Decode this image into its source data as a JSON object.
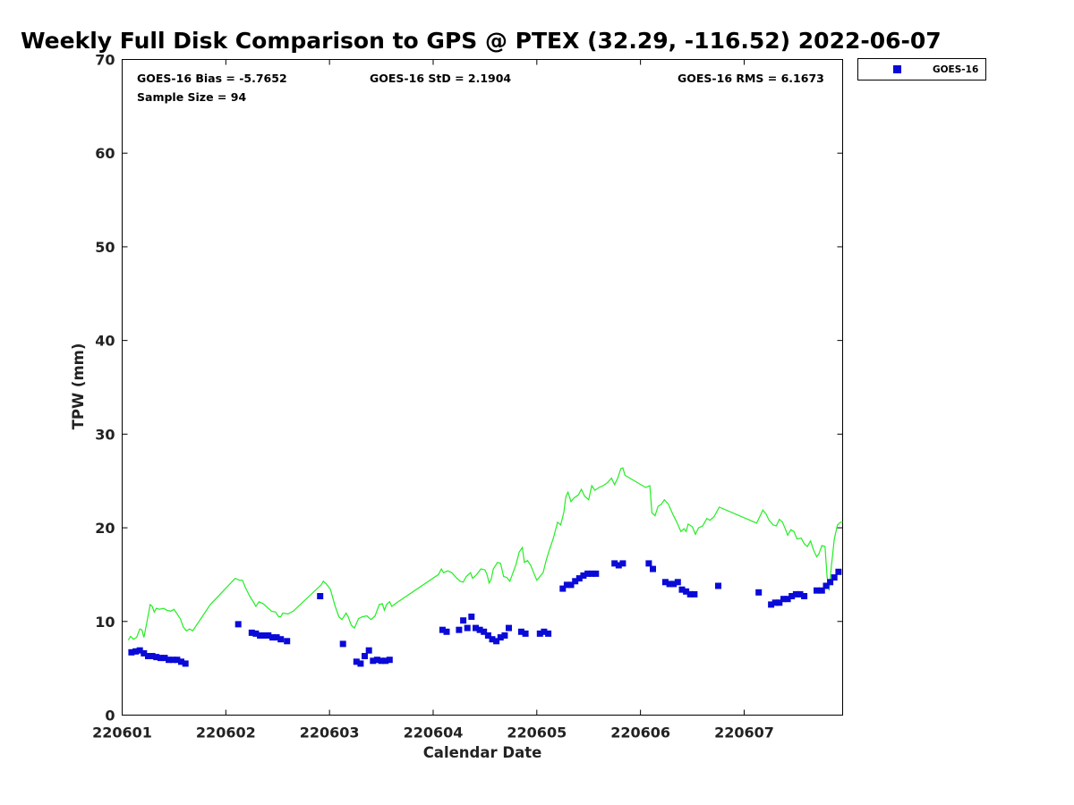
{
  "chart_data": {
    "type": "scatter",
    "title": "Weekly Full Disk Comparison to GPS @ PTEX (32.29, -116.52) 2022-06-07",
    "xlabel": "Calendar Date",
    "ylabel": "TPW (mm)",
    "ylim": [
      0,
      70
    ],
    "yticks": [
      0,
      10,
      20,
      30,
      40,
      50,
      60,
      70
    ],
    "xlim": [
      0,
      6.95
    ],
    "xticks": [
      {
        "pos": 0,
        "label": "220601"
      },
      {
        "pos": 1,
        "label": "220602"
      },
      {
        "pos": 2,
        "label": "220603"
      },
      {
        "pos": 3,
        "label": "220604"
      },
      {
        "pos": 4,
        "label": "220605"
      },
      {
        "pos": 5,
        "label": "220606"
      },
      {
        "pos": 6,
        "label": "220607"
      }
    ],
    "stats": {
      "bias": "GOES-16 Bias = -5.7652",
      "std": "GOES-16 StD = 2.1904",
      "rms": "GOES-16 RMS = 6.1673",
      "sample": "Sample Size = 94"
    },
    "legend": {
      "placement": "top-right (outside plot)",
      "label": "GOES-16"
    },
    "colors": {
      "goes": "#0a0ad8",
      "gps": "#22ee22"
    },
    "series": [
      {
        "name": "GOES-16",
        "marker": "square",
        "points": [
          [
            0.09,
            6.7
          ],
          [
            0.13,
            6.8
          ],
          [
            0.17,
            6.9
          ],
          [
            0.21,
            6.6
          ],
          [
            0.25,
            6.3
          ],
          [
            0.29,
            6.3
          ],
          [
            0.33,
            6.2
          ],
          [
            0.37,
            6.1
          ],
          [
            0.41,
            6.1
          ],
          [
            0.45,
            5.9
          ],
          [
            0.49,
            5.9
          ],
          [
            0.53,
            5.9
          ],
          [
            0.57,
            5.7
          ],
          [
            0.61,
            5.5
          ],
          [
            1.12,
            9.7
          ],
          [
            1.25,
            8.8
          ],
          [
            1.29,
            8.7
          ],
          [
            1.33,
            8.5
          ],
          [
            1.37,
            8.5
          ],
          [
            1.41,
            8.5
          ],
          [
            1.45,
            8.3
          ],
          [
            1.49,
            8.3
          ],
          [
            1.53,
            8.1
          ],
          [
            1.59,
            7.9
          ],
          [
            1.91,
            12.7
          ],
          [
            2.13,
            7.6
          ],
          [
            2.26,
            5.7
          ],
          [
            2.3,
            5.5
          ],
          [
            2.34,
            6.3
          ],
          [
            2.38,
            6.9
          ],
          [
            2.42,
            5.8
          ],
          [
            2.46,
            5.9
          ],
          [
            2.5,
            5.8
          ],
          [
            2.54,
            5.8
          ],
          [
            2.58,
            5.9
          ],
          [
            3.09,
            9.1
          ],
          [
            3.13,
            8.9
          ],
          [
            3.25,
            9.1
          ],
          [
            3.29,
            10.1
          ],
          [
            3.33,
            9.3
          ],
          [
            3.37,
            10.5
          ],
          [
            3.41,
            9.3
          ],
          [
            3.45,
            9.1
          ],
          [
            3.49,
            8.9
          ],
          [
            3.53,
            8.5
          ],
          [
            3.57,
            8.1
          ],
          [
            3.61,
            7.9
          ],
          [
            3.65,
            8.3
          ],
          [
            3.69,
            8.5
          ],
          [
            3.73,
            9.3
          ],
          [
            3.85,
            8.9
          ],
          [
            3.89,
            8.7
          ],
          [
            4.03,
            8.7
          ],
          [
            4.07,
            8.9
          ],
          [
            4.11,
            8.7
          ],
          [
            4.25,
            13.5
          ],
          [
            4.29,
            13.9
          ],
          [
            4.33,
            13.9
          ],
          [
            4.37,
            14.3
          ],
          [
            4.41,
            14.6
          ],
          [
            4.45,
            14.9
          ],
          [
            4.49,
            15.1
          ],
          [
            4.53,
            15.1
          ],
          [
            4.57,
            15.1
          ],
          [
            4.75,
            16.2
          ],
          [
            4.79,
            16.0
          ],
          [
            4.83,
            16.2
          ],
          [
            5.08,
            16.2
          ],
          [
            5.12,
            15.6
          ],
          [
            5.24,
            14.2
          ],
          [
            5.28,
            14.0
          ],
          [
            5.32,
            14.0
          ],
          [
            5.36,
            14.2
          ],
          [
            5.4,
            13.4
          ],
          [
            5.44,
            13.2
          ],
          [
            5.48,
            12.9
          ],
          [
            5.52,
            12.9
          ],
          [
            5.75,
            13.8
          ],
          [
            6.14,
            13.1
          ],
          [
            6.26,
            11.8
          ],
          [
            6.3,
            12.0
          ],
          [
            6.34,
            12.0
          ],
          [
            6.38,
            12.4
          ],
          [
            6.42,
            12.4
          ],
          [
            6.46,
            12.7
          ],
          [
            6.5,
            12.9
          ],
          [
            6.54,
            12.9
          ],
          [
            6.58,
            12.7
          ],
          [
            6.7,
            13.3
          ],
          [
            6.75,
            13.3
          ],
          [
            6.79,
            13.8
          ],
          [
            6.83,
            14.2
          ],
          [
            6.87,
            14.7
          ],
          [
            6.91,
            15.3
          ]
        ]
      },
      {
        "name": "",
        "marker": "line",
        "points": [
          [
            0.06,
            8.0
          ],
          [
            0.08,
            8.4
          ],
          [
            0.11,
            8.1
          ],
          [
            0.14,
            8.3
          ],
          [
            0.17,
            9.2
          ],
          [
            0.19,
            9.1
          ],
          [
            0.21,
            8.3
          ],
          [
            0.24,
            10.0
          ],
          [
            0.27,
            11.8
          ],
          [
            0.29,
            11.6
          ],
          [
            0.31,
            11.0
          ],
          [
            0.33,
            11.4
          ],
          [
            0.36,
            11.3
          ],
          [
            0.4,
            11.4
          ],
          [
            0.43,
            11.2
          ],
          [
            0.47,
            11.1
          ],
          [
            0.5,
            11.3
          ],
          [
            0.53,
            10.8
          ],
          [
            0.56,
            10.3
          ],
          [
            0.59,
            9.4
          ],
          [
            0.62,
            9.0
          ],
          [
            0.65,
            9.2
          ],
          [
            0.68,
            9.0
          ],
          [
            0.85,
            11.8
          ],
          [
            1.09,
            14.6
          ],
          [
            1.13,
            14.4
          ],
          [
            1.16,
            14.4
          ],
          [
            1.19,
            13.6
          ],
          [
            1.23,
            12.7
          ],
          [
            1.27,
            12.0
          ],
          [
            1.29,
            11.6
          ],
          [
            1.32,
            12.1
          ],
          [
            1.36,
            11.9
          ],
          [
            1.4,
            11.5
          ],
          [
            1.44,
            11.1
          ],
          [
            1.48,
            11.0
          ],
          [
            1.51,
            10.5
          ],
          [
            1.53,
            10.5
          ],
          [
            1.55,
            10.9
          ],
          [
            1.6,
            10.8
          ],
          [
            1.65,
            11.1
          ],
          [
            1.92,
            13.9
          ],
          [
            1.94,
            14.3
          ],
          [
            1.97,
            14.0
          ],
          [
            2.01,
            13.4
          ],
          [
            2.05,
            11.8
          ],
          [
            2.09,
            10.5
          ],
          [
            2.12,
            10.2
          ],
          [
            2.16,
            10.9
          ],
          [
            2.18,
            10.5
          ],
          [
            2.21,
            9.6
          ],
          [
            2.24,
            9.3
          ],
          [
            2.28,
            10.3
          ],
          [
            2.32,
            10.5
          ],
          [
            2.36,
            10.6
          ],
          [
            2.4,
            10.2
          ],
          [
            2.44,
            10.6
          ],
          [
            2.48,
            11.8
          ],
          [
            2.51,
            11.9
          ],
          [
            2.53,
            11.2
          ],
          [
            2.55,
            11.8
          ],
          [
            2.58,
            12.1
          ],
          [
            2.6,
            11.6
          ],
          [
            2.65,
            12.0
          ],
          [
            3.05,
            15.0
          ],
          [
            3.08,
            15.6
          ],
          [
            3.1,
            15.2
          ],
          [
            3.14,
            15.4
          ],
          [
            3.18,
            15.2
          ],
          [
            3.22,
            14.7
          ],
          [
            3.26,
            14.3
          ],
          [
            3.29,
            14.2
          ],
          [
            3.32,
            14.8
          ],
          [
            3.36,
            15.2
          ],
          [
            3.38,
            14.6
          ],
          [
            3.42,
            15.0
          ],
          [
            3.46,
            15.6
          ],
          [
            3.5,
            15.5
          ],
          [
            3.52,
            15.0
          ],
          [
            3.54,
            14.1
          ],
          [
            3.56,
            14.5
          ],
          [
            3.58,
            15.6
          ],
          [
            3.62,
            16.3
          ],
          [
            3.65,
            16.2
          ],
          [
            3.68,
            14.8
          ],
          [
            3.71,
            14.7
          ],
          [
            3.74,
            14.3
          ],
          [
            3.77,
            15.2
          ],
          [
            3.8,
            16.1
          ],
          [
            3.83,
            17.4
          ],
          [
            3.86,
            17.9
          ],
          [
            3.88,
            16.3
          ],
          [
            3.91,
            16.5
          ],
          [
            3.94,
            16.0
          ],
          [
            3.97,
            15.2
          ],
          [
            4.0,
            14.4
          ],
          [
            4.03,
            14.8
          ],
          [
            4.06,
            15.2
          ],
          [
            4.09,
            16.5
          ],
          [
            4.12,
            17.6
          ],
          [
            4.16,
            18.9
          ],
          [
            4.2,
            20.6
          ],
          [
            4.23,
            20.3
          ],
          [
            4.26,
            21.6
          ],
          [
            4.28,
            23.3
          ],
          [
            4.3,
            23.8
          ],
          [
            4.33,
            22.8
          ],
          [
            4.36,
            23.2
          ],
          [
            4.4,
            23.5
          ],
          [
            4.43,
            24.1
          ],
          [
            4.46,
            23.4
          ],
          [
            4.5,
            23.0
          ],
          [
            4.53,
            24.5
          ],
          [
            4.56,
            24.0
          ],
          [
            4.6,
            24.3
          ],
          [
            4.64,
            24.5
          ],
          [
            4.68,
            24.8
          ],
          [
            4.72,
            25.3
          ],
          [
            4.75,
            24.6
          ],
          [
            4.78,
            25.3
          ],
          [
            4.81,
            26.3
          ],
          [
            4.83,
            26.4
          ],
          [
            4.85,
            25.6
          ],
          [
            5.05,
            24.3
          ],
          [
            5.09,
            24.5
          ],
          [
            5.11,
            21.6
          ],
          [
            5.14,
            21.3
          ],
          [
            5.17,
            22.3
          ],
          [
            5.2,
            22.5
          ],
          [
            5.23,
            23.0
          ],
          [
            5.27,
            22.5
          ],
          [
            5.31,
            21.5
          ],
          [
            5.35,
            20.6
          ],
          [
            5.39,
            19.6
          ],
          [
            5.42,
            19.9
          ],
          [
            5.44,
            19.6
          ],
          [
            5.46,
            20.4
          ],
          [
            5.5,
            20.1
          ],
          [
            5.53,
            19.3
          ],
          [
            5.56,
            20.0
          ],
          [
            5.6,
            20.2
          ],
          [
            5.64,
            21.0
          ],
          [
            5.67,
            20.8
          ],
          [
            5.71,
            21.2
          ],
          [
            5.73,
            21.6
          ],
          [
            5.76,
            22.2
          ],
          [
            6.12,
            20.5
          ],
          [
            6.16,
            21.4
          ],
          [
            6.18,
            21.9
          ],
          [
            6.21,
            21.5
          ],
          [
            6.24,
            20.8
          ],
          [
            6.28,
            20.3
          ],
          [
            6.31,
            20.2
          ],
          [
            6.34,
            20.9
          ],
          [
            6.37,
            20.6
          ],
          [
            6.4,
            19.8
          ],
          [
            6.42,
            19.2
          ],
          [
            6.45,
            19.8
          ],
          [
            6.48,
            19.6
          ],
          [
            6.51,
            18.8
          ],
          [
            6.55,
            18.9
          ],
          [
            6.58,
            18.3
          ],
          [
            6.61,
            18.0
          ],
          [
            6.64,
            18.6
          ],
          [
            6.67,
            17.6
          ],
          [
            6.7,
            16.9
          ],
          [
            6.72,
            17.2
          ],
          [
            6.75,
            18.1
          ],
          [
            6.78,
            18.0
          ],
          [
            6.8,
            14.8
          ],
          [
            6.82,
            13.3
          ],
          [
            6.84,
            15.8
          ],
          [
            6.87,
            18.8
          ],
          [
            6.9,
            20.3
          ],
          [
            6.93,
            20.6
          ],
          [
            6.95,
            20.6
          ]
        ]
      }
    ]
  }
}
